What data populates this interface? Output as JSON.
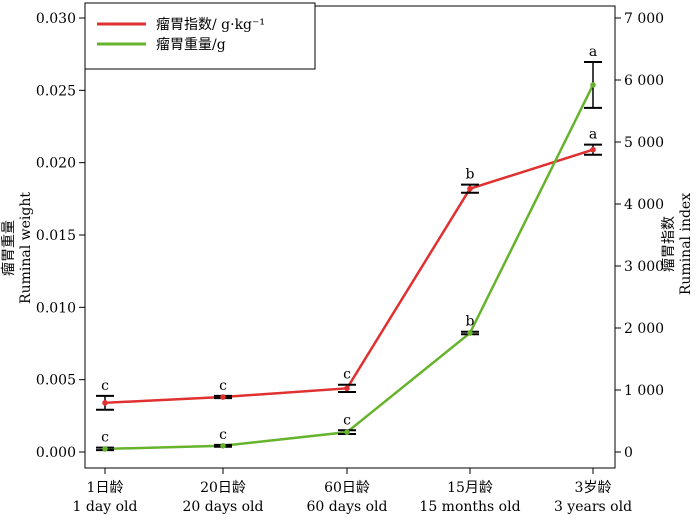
{
  "chart_data": {
    "type": "line",
    "categories": [
      {
        "zh": "1日龄",
        "en": "1 day old"
      },
      {
        "zh": "20日龄",
        "en": "20 days old"
      },
      {
        "zh": "60日龄",
        "en": "60 days old"
      },
      {
        "zh": "15月龄",
        "en": "15 months old"
      },
      {
        "zh": "3岁龄",
        "en": "3 years old"
      }
    ],
    "y_left": {
      "label_zh": "瘤胃重量",
      "label_en": "Ruminal weight",
      "ylim": [
        0,
        0.03
      ],
      "ticks": [
        "0.000",
        "0.005",
        "0.010",
        "0.015",
        "0.020",
        "0.025",
        "0.030"
      ]
    },
    "y_right": {
      "label_zh": "瘤胃指数",
      "label_en": "Ruminal index",
      "ylim": [
        0,
        7000
      ],
      "ticks": [
        "0",
        "1 000",
        "2 000",
        "3 000",
        "4 000",
        "5 000",
        "6 000",
        "7 000"
      ]
    },
    "series": [
      {
        "name": "瘤胃指数/ g·kg⁻¹",
        "color": "#e03030",
        "axis": "left",
        "values": [
          0.0034,
          0.0038,
          0.0044,
          0.0182,
          0.0209
        ],
        "errors": [
          0.00048,
          8e-05,
          0.00025,
          0.00028,
          0.00035
        ],
        "letters": [
          "c",
          "c",
          "c",
          "b",
          "a"
        ]
      },
      {
        "name": "瘤胃重量/g",
        "color": "#66b32e",
        "axis": "right",
        "values": [
          50,
          100,
          320,
          1920,
          5920
        ],
        "errors": [
          20,
          15,
          30,
          20,
          370
        ],
        "letters": [
          "c",
          "c",
          "c",
          "b",
          "a"
        ]
      }
    ],
    "legend_position": "top-left",
    "grid": false
  }
}
